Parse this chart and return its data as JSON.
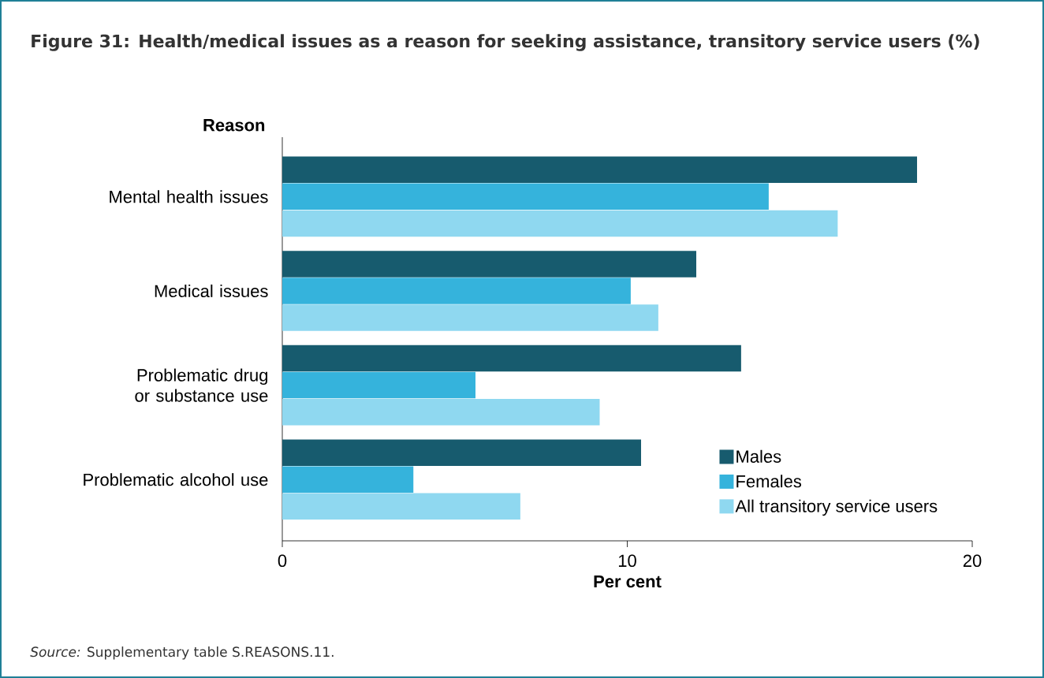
{
  "chart_data": {
    "type": "bar",
    "orientation": "horizontal",
    "title": "Figure 31: Health/medical issues as a reason for seeking assistance, transitory service users (%)",
    "xlabel": "Per cent",
    "ylabel": "Reason",
    "categories": [
      "Mental health issues",
      "Medical issues",
      "Problematic drug or substance use",
      "Problematic alcohol use"
    ],
    "series": [
      {
        "name": "Males",
        "color": "#175b6e",
        "values": [
          18.4,
          12.0,
          13.3,
          10.4
        ]
      },
      {
        "name": "Females",
        "color": "#35b3dc",
        "values": [
          14.1,
          10.1,
          5.6,
          3.8
        ]
      },
      {
        "name": "All transitory service users",
        "color": "#8fd8f0",
        "values": [
          16.1,
          10.9,
          9.2,
          6.9
        ]
      }
    ],
    "xlim": [
      0,
      20
    ],
    "xticks": [
      0,
      10,
      20
    ],
    "grid": false,
    "legend": "bottom right",
    "annotations": [
      "*Source:* Supplementary table S.REASONS.11."
    ]
  }
}
